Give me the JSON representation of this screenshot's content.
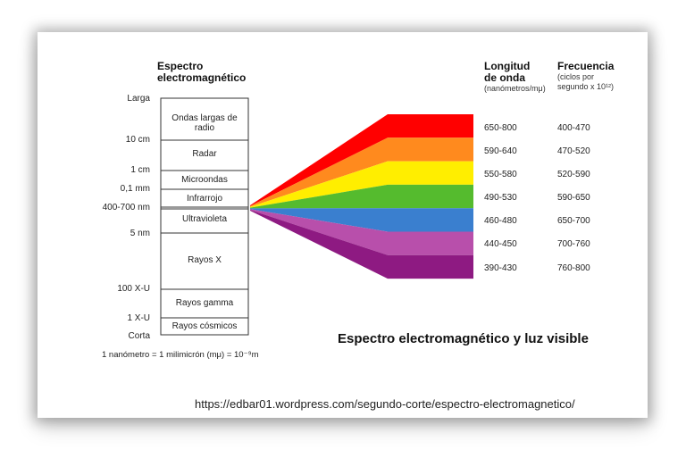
{
  "spectrum": {
    "title_line1": "Espectro",
    "title_line2": "electromagnético",
    "scale": [
      "Larga",
      "10 cm",
      "1 cm",
      "0,1 mm",
      "400-700 nm",
      "5 nm",
      "100 X-U",
      "1 X-U",
      "Corta"
    ],
    "bands": [
      "Ondas largas de radio",
      "Radar",
      "Microondas",
      "Infrarrojo",
      "Ultravioleta",
      "Rayos X",
      "Rayos gamma",
      "Rayos cósmicos"
    ],
    "footnote": "1 nanómetro = 1 milimicrón (mμ) = 10⁻⁹m"
  },
  "wavelength": {
    "header_line1": "Longitud",
    "header_line2": "de onda",
    "unit": "(nanómetros/mμ)",
    "values": [
      "650-800",
      "590-640",
      "550-580",
      "490-530",
      "460-480",
      "440-450",
      "390-430"
    ]
  },
  "frequency": {
    "header": "Frecuencia",
    "unit_line1": "(ciclos por",
    "unit_line2": "segundo x 10¹²)",
    "values": [
      "400-470",
      "470-520",
      "520-590",
      "590-650",
      "650-700",
      "700-760",
      "760-800"
    ]
  },
  "colors": [
    "#ff0000",
    "#ff8a1e",
    "#ffee00",
    "#55bb2e",
    "#3a7fcf",
    "#b84fab",
    "#8e1a82"
  ],
  "caption": "Espectro electromagnético y luz visible",
  "source_url": "https://edbar01.wordpress.com/segundo-corte/espectro-electromagnetico/"
}
